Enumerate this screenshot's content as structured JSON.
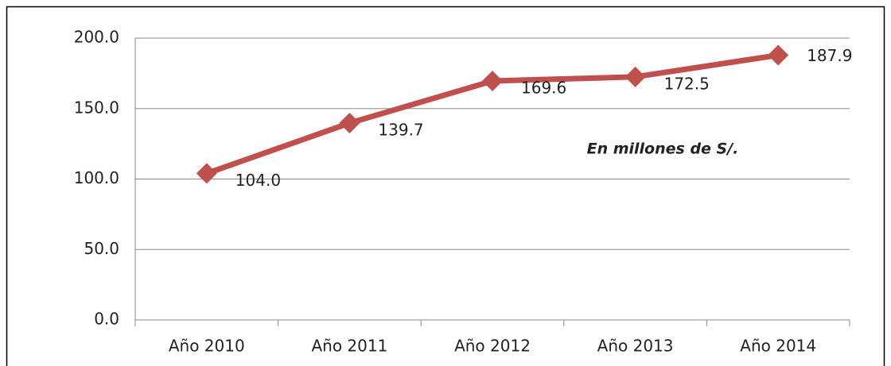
{
  "chart_data": {
    "type": "line",
    "annotation": "En millones de S/.",
    "categories": [
      "Año 2010",
      "Año 2011",
      "Año 2012",
      "Año 2013",
      "Año 2014"
    ],
    "series": [
      {
        "name": "",
        "color": "#c0504d",
        "values": [
          104.0,
          139.7,
          169.6,
          172.5,
          187.9
        ],
        "value_labels": [
          "104.0",
          "139.7",
          "169.6",
          "172.5",
          "187.9"
        ]
      }
    ],
    "ylim": [
      0,
      200
    ],
    "yticks": [
      {
        "value": 0,
        "label": "0.0"
      },
      {
        "value": 50,
        "label": "50.0"
      },
      {
        "value": 100,
        "label": "100.0"
      },
      {
        "value": 150,
        "label": "150.0"
      },
      {
        "value": 200,
        "label": "200.0"
      }
    ],
    "grid": true
  }
}
